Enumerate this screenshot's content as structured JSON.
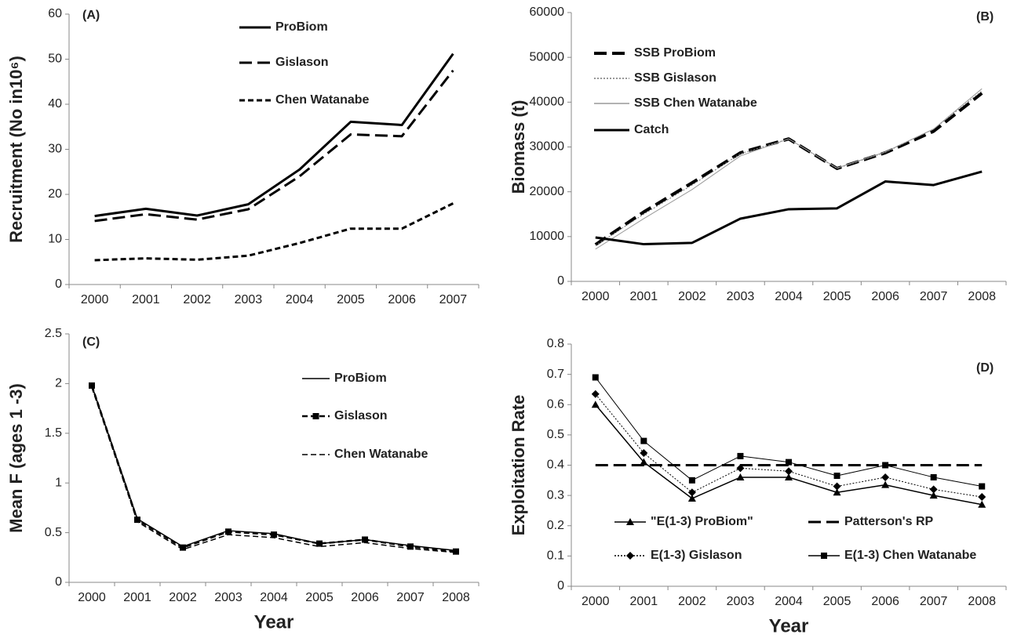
{
  "chart_data": [
    {
      "type": "line",
      "panel_label": "(A)",
      "ylabel": "Recruitment (No in10⁶)",
      "categories": [
        "2000",
        "2001",
        "2002",
        "2003",
        "2004",
        "2005",
        "2006",
        "2007"
      ],
      "ylim": [
        0,
        60
      ],
      "yticks": [
        0,
        10,
        20,
        30,
        40,
        50,
        60
      ],
      "series": [
        {
          "name": "ProBiom",
          "color": "#000000",
          "width": 3,
          "dash": "solid",
          "marker": "none",
          "values": [
            15.2,
            16.8,
            15.3,
            17.8,
            25.5,
            36.1,
            35.4,
            51.2
          ]
        },
        {
          "name": "Gislason",
          "color": "#000000",
          "width": 3,
          "dash": "long-dash",
          "marker": "none",
          "values": [
            14.1,
            15.6,
            14.4,
            16.7,
            24,
            33.3,
            32.9,
            47.5
          ]
        },
        {
          "name": "Chen Watanabe",
          "color": "#000000",
          "width": 3,
          "dash": "short-dash",
          "marker": "none",
          "values": [
            5.4,
            5.8,
            5.5,
            6.4,
            9.2,
            12.4,
            12.4,
            18
          ]
        }
      ]
    },
    {
      "type": "line",
      "panel_label": "(B)",
      "ylabel": "Biomass (t)",
      "categories": [
        "2000",
        "2001",
        "2002",
        "2003",
        "2004",
        "2005",
        "2006",
        "2007",
        "2008"
      ],
      "ylim": [
        0,
        60000
      ],
      "yticks": [
        0,
        10000,
        20000,
        30000,
        40000,
        50000,
        60000
      ],
      "series": [
        {
          "name": "SSB ProBiom",
          "color": "#000000",
          "width": 4,
          "dash": "long-dash",
          "marker": "none",
          "values": [
            8200,
            15500,
            22000,
            28700,
            31800,
            25200,
            28700,
            33500,
            42000
          ]
        },
        {
          "name": "SSB Gislason",
          "color": "#777777",
          "width": 1,
          "dash": "dotted",
          "marker": "none",
          "values": [
            8000,
            15000,
            21500,
            28500,
            31800,
            25200,
            28800,
            34000,
            42500
          ]
        },
        {
          "name": "SSB Chen Watanabe",
          "color": "#999999",
          "width": 1,
          "dash": "solid",
          "marker": "none",
          "values": [
            7200,
            14000,
            20500,
            28000,
            31800,
            25300,
            28900,
            34000,
            43000
          ]
        },
        {
          "name": "Catch",
          "color": "#000000",
          "width": 3,
          "dash": "solid",
          "marker": "none",
          "values": [
            9800,
            8300,
            8600,
            14000,
            16100,
            16300,
            22300,
            21500,
            24500
          ]
        }
      ]
    },
    {
      "type": "line",
      "panel_label": "(C)",
      "ylabel": "Mean F (ages 1 -3)",
      "xlabel": "Year",
      "categories": [
        "2000",
        "2001",
        "2002",
        "2003",
        "2004",
        "2005",
        "2006",
        "2007",
        "2008"
      ],
      "ylim": [
        0,
        2.5
      ],
      "yticks": [
        0,
        0.5,
        1,
        1.5,
        2,
        2.5
      ],
      "series": [
        {
          "name": "ProBiom",
          "color": "#000000",
          "width": 1.5,
          "dash": "solid",
          "marker": "none",
          "values": [
            1.98,
            0.64,
            0.36,
            0.52,
            0.49,
            0.39,
            0.43,
            0.37,
            0.32
          ]
        },
        {
          "name": "Gislason",
          "color": "#000000",
          "width": 2.5,
          "dash": "short-dash",
          "marker": "square",
          "values": [
            1.98,
            0.63,
            0.35,
            0.51,
            0.48,
            0.39,
            0.43,
            0.36,
            0.31
          ]
        },
        {
          "name": "Chen Watanabe",
          "color": "#000000",
          "width": 1.5,
          "dash": "short-dash",
          "marker": "none",
          "values": [
            1.96,
            0.61,
            0.33,
            0.48,
            0.45,
            0.36,
            0.4,
            0.34,
            0.3
          ]
        }
      ]
    },
    {
      "type": "line",
      "panel_label": "(D)",
      "ylabel": "Exploitation Rate",
      "xlabel": "Year",
      "categories": [
        "2000",
        "2001",
        "2002",
        "2003",
        "2004",
        "2005",
        "2006",
        "2007",
        "2008"
      ],
      "ylim": [
        0,
        0.8
      ],
      "yticks": [
        0,
        0.1,
        0.2,
        0.3,
        0.4,
        0.5,
        0.6,
        0.7,
        0.8
      ],
      "series": [
        {
          "name": "\"E(1-3) ProBiom\"",
          "color": "#000000",
          "width": 1.5,
          "dash": "solid",
          "marker": "triangle",
          "values": [
            0.6,
            0.41,
            0.29,
            0.36,
            0.36,
            0.31,
            0.335,
            0.3,
            0.27
          ]
        },
        {
          "name": "Patterson's RP",
          "color": "#000000",
          "width": 3,
          "dash": "long-dash",
          "marker": "none",
          "values": [
            0.4,
            0.4,
            0.4,
            0.4,
            0.4,
            0.4,
            0.4,
            0.4,
            0.4
          ]
        },
        {
          "name": "E(1-3) Gislason",
          "color": "#000000",
          "width": 1,
          "dash": "dotted",
          "marker": "diamond",
          "values": [
            0.635,
            0.44,
            0.31,
            0.39,
            0.38,
            0.33,
            0.36,
            0.32,
            0.295
          ]
        },
        {
          "name": "E(1-3) Chen Watanabe",
          "color": "#000000",
          "width": 1,
          "dash": "solid",
          "marker": "square",
          "values": [
            0.69,
            0.48,
            0.35,
            0.43,
            0.41,
            0.365,
            0.4,
            0.36,
            0.33
          ]
        }
      ]
    }
  ]
}
